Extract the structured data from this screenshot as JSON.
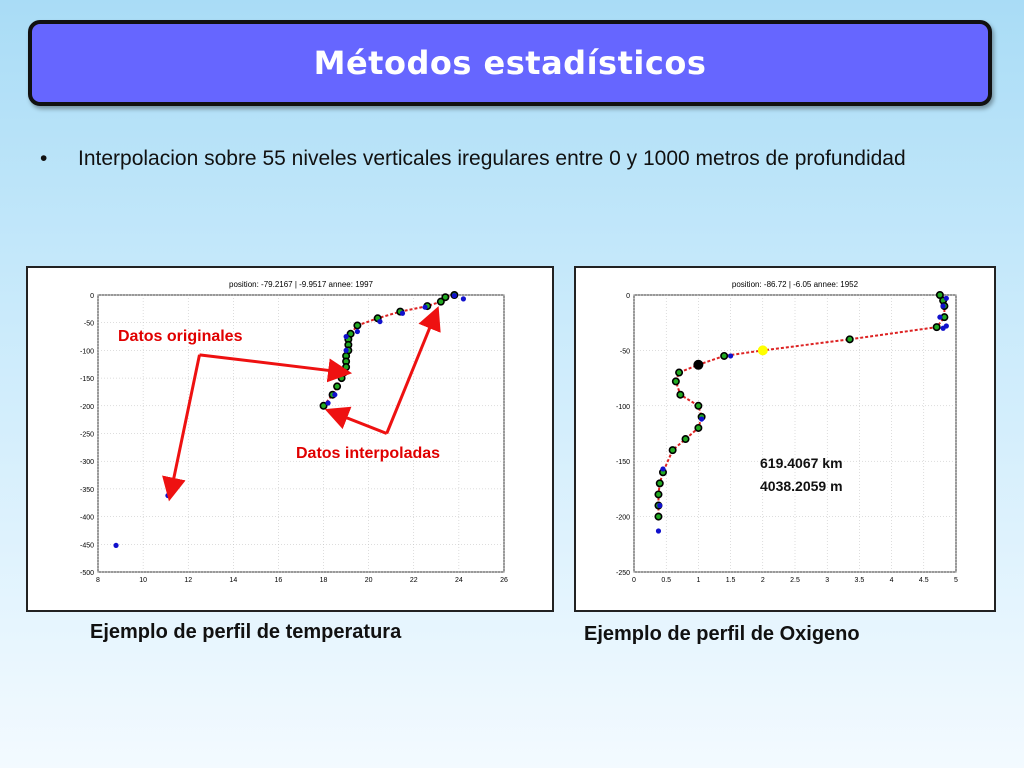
{
  "slide": {
    "title": "Métodos estadísticos",
    "bullet_symbol": "•",
    "bullet_text": "Interpolacion sobre 55 niveles verticales iregulares entre 0 y 1000 metros de profundidad"
  },
  "captions": {
    "temperature": "Ejemplo de perfil de temperatura",
    "oxygen": "Ejemplo de perfil de Oxigeno"
  },
  "annotations": {
    "original": "Datos originales",
    "interpolated": "Datos interpoladas",
    "distance_km": "619.4067 km",
    "distance_m": "4038.2059 m",
    "arrow_color": "#ee1111"
  },
  "chart_data": [
    {
      "type": "scatter",
      "title": "position: -79.2167 | -9.9517   annee: 1997",
      "xlim": [
        8,
        26
      ],
      "ylim": [
        -500,
        0
      ],
      "x_ticks": [
        8,
        10,
        12,
        14,
        16,
        18,
        20,
        22,
        24,
        26
      ],
      "y_ticks": [
        0,
        -50,
        -100,
        -150,
        -200,
        -250,
        -300,
        -350,
        -400,
        -450,
        -500
      ],
      "grid": true,
      "colors": {
        "original": "#1111cc",
        "interpolated": "#000000",
        "line": "#dd2222",
        "interp_fill": "#22aa22"
      },
      "original": {
        "x": [
          24.2,
          23.8,
          22.5,
          21.5,
          20.5,
          19.5,
          19.0,
          19.0,
          18.9,
          18.5,
          18.2,
          11.1,
          8.8
        ],
        "y": [
          -7,
          -1,
          -22,
          -33,
          -48,
          -66,
          -75,
          -100,
          -140,
          -180,
          -195,
          -362,
          -452
        ]
      },
      "interpolated": {
        "x": [
          23.8,
          23.4,
          23.2,
          22.6,
          21.4,
          20.4,
          19.5,
          19.2,
          19.1,
          19.1,
          19.1,
          19.0,
          19.0,
          19.0,
          18.9,
          18.8,
          18.6,
          18.4,
          18.0
        ],
        "y": [
          0,
          -4,
          -12,
          -20,
          -30,
          -42,
          -55,
          -70,
          -80,
          -90,
          -100,
          -110,
          -120,
          -130,
          -140,
          -150,
          -165,
          -180,
          -200
        ]
      }
    },
    {
      "type": "scatter",
      "title": "position: -86.72 | -6.05   annee: 1952",
      "xlim": [
        0,
        5
      ],
      "ylim": [
        -250,
        0
      ],
      "x_ticks": [
        0,
        0.5,
        1,
        1.5,
        2,
        2.5,
        3,
        3.5,
        4,
        4.5,
        5
      ],
      "y_ticks": [
        0,
        -50,
        -100,
        -150,
        -200,
        -250
      ],
      "grid": true,
      "colors": {
        "original": "#1111cc",
        "interpolated": "#000000",
        "line": "#dd2222",
        "interp_fill": "#22aa22",
        "highlight": "#ffff00"
      },
      "original": {
        "x": [
          4.85,
          4.8,
          4.75,
          4.85,
          4.8,
          1.5,
          1.05,
          0.45,
          0.4,
          0.38
        ],
        "y": [
          -3,
          -10,
          -20,
          -28,
          -30,
          -55,
          -112,
          -157,
          -190,
          -213
        ]
      },
      "interpolated": {
        "x": [
          4.75,
          4.8,
          4.82,
          4.82,
          4.7,
          3.35,
          2.0,
          1.4,
          1.0,
          0.7,
          0.65,
          0.72,
          1.0,
          1.05,
          1.0,
          0.8,
          0.6,
          0.45,
          0.4,
          0.38,
          0.38,
          0.38
        ],
        "y": [
          0,
          -5,
          -10,
          -20,
          -29,
          -40,
          -50,
          -55,
          -63,
          -70,
          -78,
          -90,
          -100,
          -110,
          -120,
          -130,
          -140,
          -160,
          -170,
          -180,
          -190,
          -200
        ]
      },
      "highlight": {
        "x": 2.0,
        "y": -50
      },
      "large_marker": {
        "x": 1.0,
        "y": -63
      }
    }
  ]
}
